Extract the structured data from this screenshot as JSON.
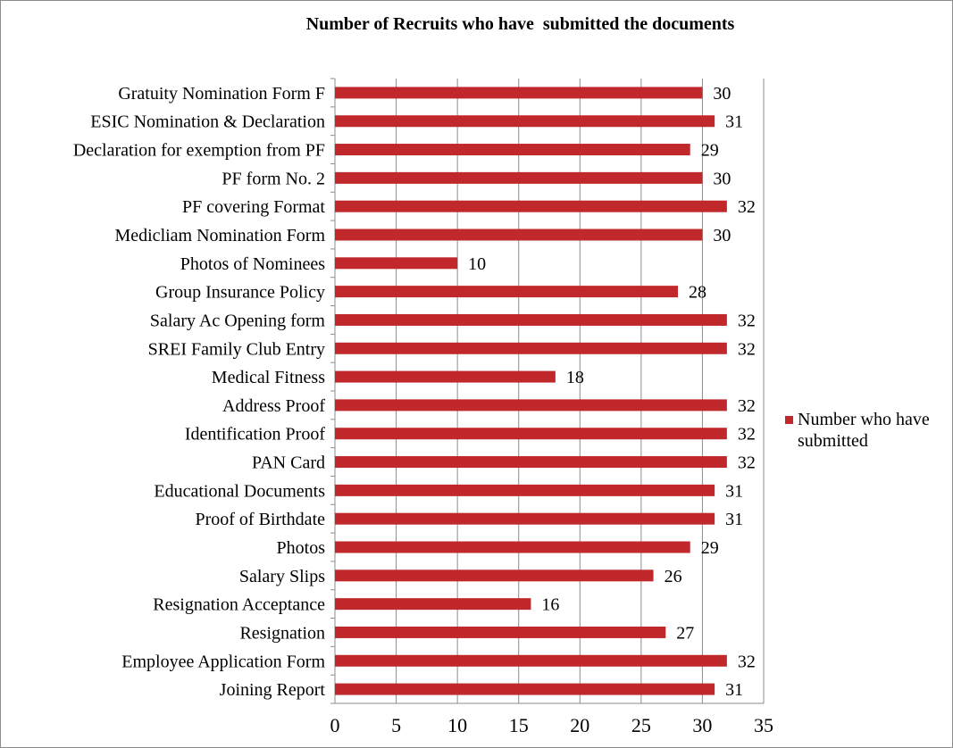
{
  "chart_data": {
    "type": "bar",
    "orientation": "horizontal",
    "title": "Number of Recruits who have  submitted the documents",
    "xlabel": "",
    "ylabel": "",
    "xlim": [
      0,
      35
    ],
    "xticks": [
      0,
      5,
      10,
      15,
      20,
      25,
      30,
      35
    ],
    "grid": true,
    "legend_position": "right",
    "bar_color": "#c0282b",
    "categories": [
      "Joining Report",
      "Employee Application Form",
      "Resignation",
      "Resignation Acceptance",
      "Salary Slips",
      "Photos",
      "Proof of Birthdate",
      "Educational Documents",
      "PAN Card",
      "Identification Proof",
      "Address Proof",
      "Medical Fitness",
      "SREI Family Club Entry",
      "Salary Ac Opening form",
      "Group Insurance Policy",
      "Photos of Nominees",
      "Medicliam Nomination Form",
      "PF covering Format",
      "PF form No. 2",
      "Declaration for exemption from PF",
      "ESIC Nomination & Declaration",
      "Gratuity Nomination Form F"
    ],
    "series": [
      {
        "name": "Number who have submitted",
        "values": [
          31,
          32,
          27,
          16,
          26,
          29,
          31,
          31,
          32,
          32,
          32,
          18,
          32,
          32,
          28,
          10,
          30,
          32,
          30,
          29,
          31,
          30
        ]
      }
    ]
  }
}
